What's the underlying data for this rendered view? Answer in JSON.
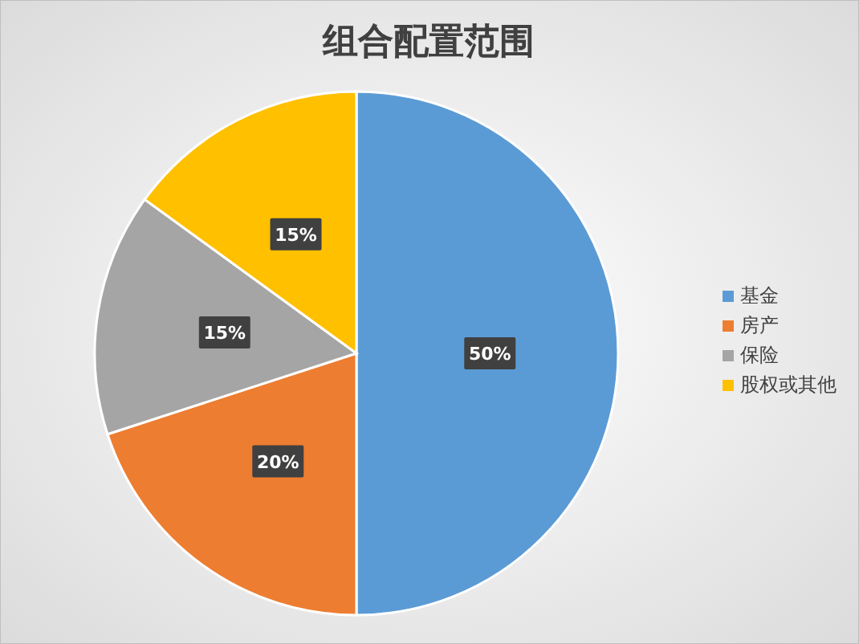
{
  "chart_data": {
    "type": "pie",
    "title": "组合配置范围",
    "categories": [
      "基金",
      "房产",
      "保险",
      "股权或其他"
    ],
    "values": [
      50,
      20,
      15,
      15
    ],
    "colors": [
      "#5b9bd5",
      "#ed7d31",
      "#a5a5a5",
      "#ffc000"
    ],
    "value_labels": [
      "50%",
      "20%",
      "15%",
      "15%"
    ],
    "legend": "right"
  }
}
